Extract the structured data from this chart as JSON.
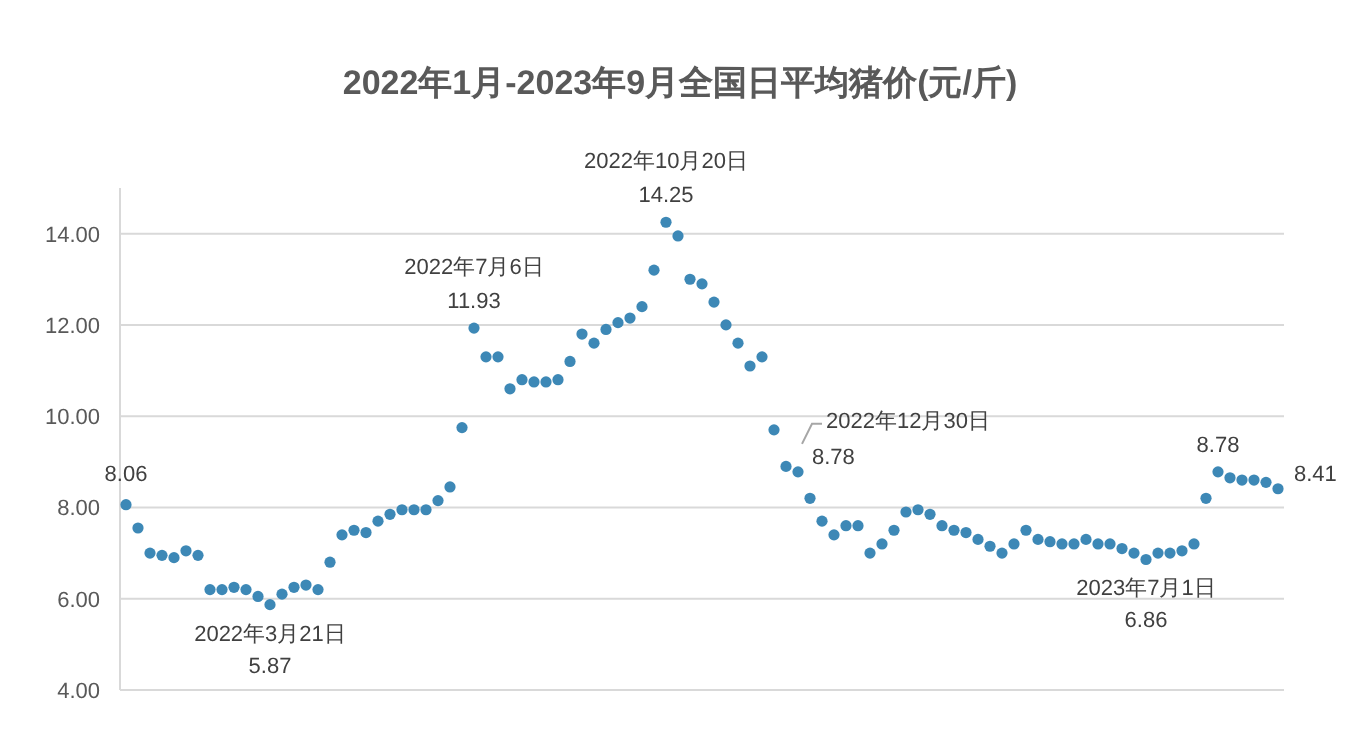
{
  "chart_data": {
    "type": "scatter",
    "title": "2022年1月-2023年9月全国日平均猪价(元/斤)",
    "categories": [
      null,
      null,
      null,
      null,
      null,
      null,
      null,
      null,
      null,
      null,
      null,
      null,
      null,
      null,
      null,
      null,
      null,
      null,
      null,
      null,
      null,
      null,
      null,
      null,
      null,
      null,
      null,
      null,
      null,
      null,
      null,
      null,
      null,
      null,
      null,
      null,
      null,
      null,
      null,
      null,
      null,
      null,
      null,
      null,
      null,
      null,
      null,
      null,
      null,
      null,
      null,
      null,
      null,
      null,
      null,
      null,
      null,
      null,
      null,
      null,
      null,
      null,
      null,
      null,
      null,
      null,
      null,
      null,
      null,
      null,
      null,
      null,
      null,
      null,
      null,
      null,
      null,
      null,
      null,
      null,
      null,
      null,
      null,
      null,
      null,
      null,
      null,
      null,
      null,
      null,
      null,
      null,
      null,
      null,
      null,
      null,
      null
    ],
    "values": [
      8.06,
      7.55,
      7.0,
      6.95,
      6.9,
      7.05,
      6.95,
      6.2,
      6.2,
      6.25,
      6.2,
      6.05,
      5.87,
      6.1,
      6.25,
      6.3,
      6.2,
      6.8,
      7.4,
      7.5,
      7.45,
      7.7,
      7.85,
      7.95,
      7.95,
      7.95,
      8.15,
      8.45,
      9.75,
      11.93,
      11.3,
      11.3,
      10.6,
      10.8,
      10.75,
      10.75,
      10.8,
      11.2,
      11.8,
      11.6,
      11.9,
      12.05,
      12.15,
      12.4,
      13.2,
      14.25,
      13.95,
      13.0,
      12.9,
      12.5,
      12.0,
      11.6,
      11.1,
      11.3,
      9.7,
      8.9,
      8.78,
      8.2,
      7.7,
      7.4,
      7.6,
      7.6,
      7.0,
      7.2,
      7.5,
      7.9,
      7.95,
      7.85,
      7.6,
      7.5,
      7.45,
      7.3,
      7.15,
      7.0,
      7.2,
      7.5,
      7.3,
      7.25,
      7.2,
      7.2,
      7.3,
      7.2,
      7.2,
      7.1,
      7.0,
      6.86,
      7.0,
      7.0,
      7.05,
      7.2,
      8.2,
      8.78,
      8.65,
      8.6,
      8.6,
      8.55,
      8.41
    ],
    "value_labels": [
      "8.06",
      null,
      null,
      null,
      null,
      null,
      null,
      null,
      null,
      null,
      null,
      null,
      "5.87",
      null,
      null,
      null,
      null,
      null,
      null,
      null,
      null,
      null,
      null,
      null,
      null,
      null,
      null,
      null,
      null,
      "11.93",
      null,
      null,
      null,
      null,
      null,
      null,
      null,
      null,
      null,
      null,
      null,
      null,
      null,
      null,
      null,
      "14.25",
      null,
      null,
      null,
      null,
      null,
      null,
      null,
      null,
      null,
      null,
      "8.78",
      null,
      null,
      null,
      null,
      null,
      null,
      null,
      null,
      null,
      null,
      null,
      null,
      null,
      null,
      null,
      null,
      null,
      null,
      null,
      null,
      null,
      null,
      null,
      null,
      null,
      null,
      null,
      null,
      "6.86",
      null,
      null,
      null,
      null,
      null,
      "8.78",
      null,
      null,
      null,
      null,
      "8.41"
    ],
    "color": "#3d88b6",
    "marker": "circle",
    "ylim": [
      4,
      15
    ],
    "yticks": [
      {
        "value": 4,
        "label": "4.00"
      },
      {
        "value": 6,
        "label": "6.00"
      },
      {
        "value": 8,
        "label": "8.00"
      },
      {
        "value": 10,
        "label": "10.00"
      },
      {
        "value": 12,
        "label": "12.00"
      },
      {
        "value": 14,
        "label": "14.00"
      }
    ],
    "grid": "y",
    "annotations": [
      {
        "text": "2022年3月21日",
        "y": 5.87
      },
      {
        "text": "2022年7月6日",
        "y": 11.93
      },
      {
        "text": "2022年10月20日",
        "y": 14.25
      },
      "2022年12月30日",
      {
        "text": "2023年7月1日",
        "y": 6.86
      }
    ]
  }
}
